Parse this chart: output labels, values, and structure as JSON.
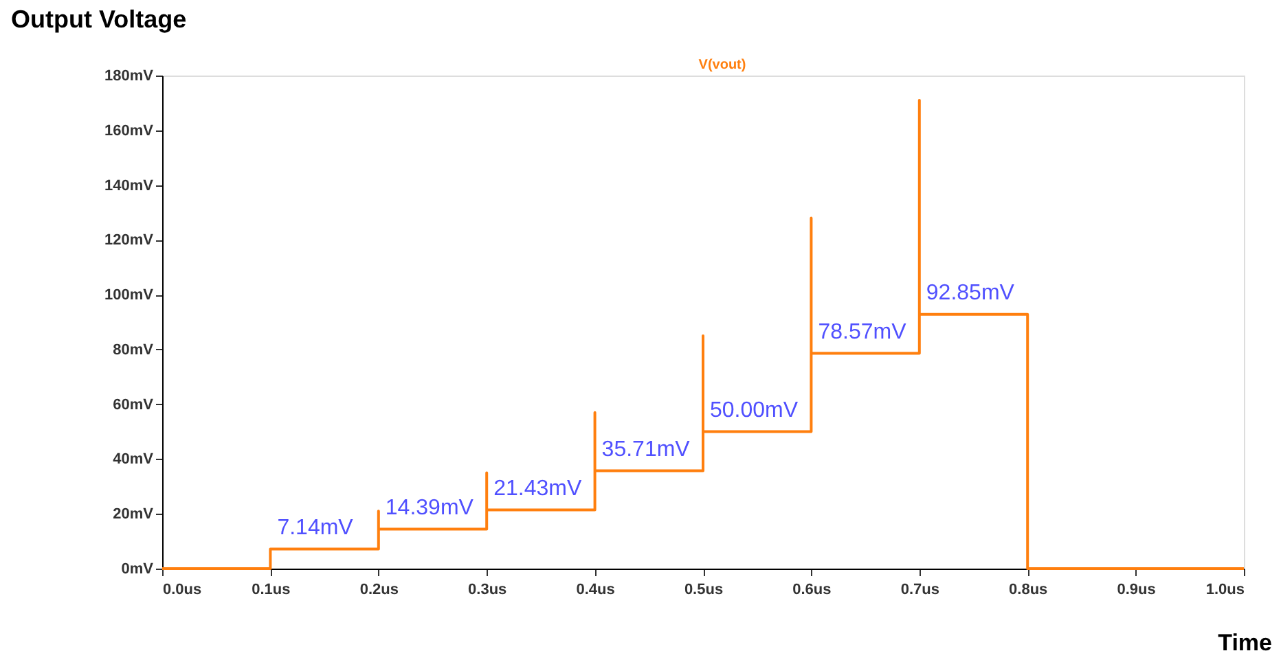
{
  "chart_data": {
    "type": "line",
    "title": "Output Voltage",
    "xlabel": "Time",
    "x": [
      0,
      0.1,
      0.1,
      0.2,
      0.2,
      0.2,
      0.3,
      0.3,
      0.3,
      0.4,
      0.4,
      0.4,
      0.5,
      0.5,
      0.5,
      0.6,
      0.6,
      0.6,
      0.7,
      0.7,
      0.7,
      0.8,
      0.8,
      1.0
    ],
    "series": [
      {
        "name": "V(vout)",
        "color": "#ff7f0e",
        "values": [
          0,
          0,
          7.14,
          7.14,
          21,
          14.39,
          14.39,
          35,
          21.43,
          21.43,
          57,
          35.71,
          35.71,
          85,
          50.0,
          50.0,
          128,
          78.57,
          78.57,
          171,
          92.85,
          92.85,
          0,
          0
        ]
      }
    ],
    "annotations": [
      {
        "text": "7.14mV",
        "x": 0.1,
        "y": 7.14
      },
      {
        "text": "14.39mV",
        "x": 0.2,
        "y": 14.39
      },
      {
        "text": "21.43mV",
        "x": 0.3,
        "y": 21.43
      },
      {
        "text": "35.71mV",
        "x": 0.4,
        "y": 35.71
      },
      {
        "text": "50.00mV",
        "x": 0.5,
        "y": 50.0
      },
      {
        "text": "78.57mV",
        "x": 0.6,
        "y": 78.57
      },
      {
        "text": "92.85mV",
        "x": 0.7,
        "y": 92.85
      }
    ],
    "xlim": [
      0,
      1.0
    ],
    "xticks": [
      {
        "value": 0,
        "label": "0.0us"
      },
      {
        "value": 0.1,
        "label": "0.1us"
      },
      {
        "value": 0.2,
        "label": "0.2us"
      },
      {
        "value": 0.3,
        "label": "0.3us"
      },
      {
        "value": 0.4,
        "label": "0.4us"
      },
      {
        "value": 0.5,
        "label": "0.5us"
      },
      {
        "value": 0.6,
        "label": "0.6us"
      },
      {
        "value": 0.7,
        "label": "0.7us"
      },
      {
        "value": 0.8,
        "label": "0.8us"
      },
      {
        "value": 0.9,
        "label": "0.9us"
      },
      {
        "value": 1.0,
        "label": "1.0us"
      }
    ],
    "ylim": [
      0,
      180
    ],
    "yticks": [
      {
        "value": 0,
        "label": "0mV"
      },
      {
        "value": 20,
        "label": "20mV"
      },
      {
        "value": 40,
        "label": "40mV"
      },
      {
        "value": 60,
        "label": "60mV"
      },
      {
        "value": 80,
        "label": "80mV"
      },
      {
        "value": 100,
        "label": "100mV"
      },
      {
        "value": 120,
        "label": "120mV"
      },
      {
        "value": 140,
        "label": "140mV"
      },
      {
        "value": 160,
        "label": "160mV"
      },
      {
        "value": 180,
        "label": "180mV"
      }
    ],
    "grid": false,
    "marker": "none",
    "line_style": "solid"
  }
}
